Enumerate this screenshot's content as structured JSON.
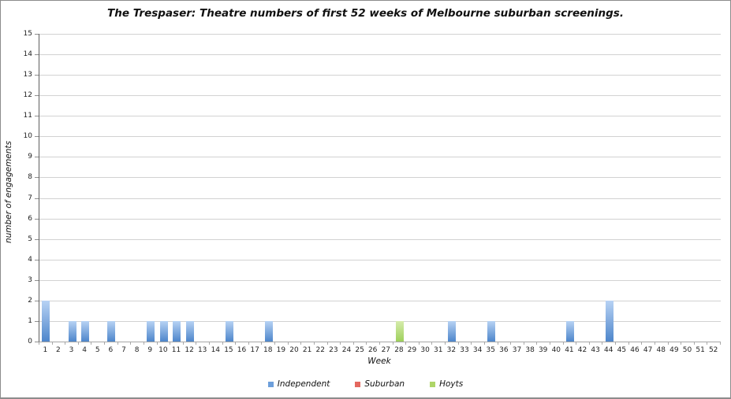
{
  "chart_data": {
    "type": "bar",
    "title": "The Trespaser: Theatre numbers of first 52 weeks of Melbourne suburban screenings.",
    "xlabel": "Week",
    "ylabel": "number of engagements",
    "ylim": [
      0,
      15
    ],
    "ytick_step": 1,
    "grid": true,
    "legend_position": "bottom",
    "categories": [
      1,
      2,
      3,
      4,
      5,
      6,
      7,
      8,
      9,
      10,
      11,
      12,
      13,
      14,
      15,
      16,
      17,
      18,
      19,
      20,
      21,
      22,
      23,
      24,
      25,
      26,
      27,
      28,
      29,
      30,
      31,
      32,
      33,
      34,
      35,
      36,
      37,
      38,
      39,
      40,
      41,
      42,
      43,
      44,
      45,
      46,
      47,
      48,
      49,
      50,
      51,
      52
    ],
    "series": [
      {
        "name": "Independent",
        "legend_color": "#6D9FDB",
        "bar_gradient": [
          "#B7D2F4",
          "#4E86CB"
        ],
        "values": [
          2,
          0,
          1,
          1,
          0,
          1,
          0,
          0,
          1,
          1,
          1,
          1,
          0,
          0,
          1,
          0,
          0,
          1,
          0,
          0,
          0,
          0,
          0,
          0,
          0,
          0,
          0,
          0,
          0,
          0,
          0,
          1,
          0,
          0,
          1,
          0,
          0,
          0,
          0,
          0,
          1,
          0,
          0,
          2,
          0,
          0,
          0,
          0,
          0,
          0,
          0,
          0
        ]
      },
      {
        "name": "Suburban",
        "legend_color": "#E4685F",
        "bar_gradient": [
          "#F4BCB6",
          "#D95F55"
        ],
        "values": [
          0,
          0,
          0,
          0,
          0,
          0,
          0,
          0,
          0,
          0,
          0,
          0,
          0,
          0,
          0,
          0,
          0,
          0,
          0,
          0,
          0,
          0,
          0,
          0,
          0,
          0,
          0,
          0,
          0,
          0,
          0,
          0,
          0,
          0,
          0,
          0,
          0,
          0,
          0,
          0,
          0,
          0,
          0,
          0,
          0,
          0,
          0,
          0,
          0,
          0,
          0,
          0
        ]
      },
      {
        "name": "Hoyts",
        "legend_color": "#AED568",
        "bar_gradient": [
          "#D6ECAC",
          "#9ED05B"
        ],
        "values": [
          0,
          0,
          0,
          0,
          0,
          0,
          0,
          0,
          0,
          0,
          0,
          0,
          0,
          0,
          0,
          0,
          0,
          0,
          0,
          0,
          0,
          0,
          0,
          0,
          0,
          0,
          0,
          1,
          0,
          0,
          0,
          0,
          0,
          0,
          0,
          0,
          0,
          0,
          0,
          0,
          0,
          0,
          0,
          0,
          0,
          0,
          0,
          0,
          0,
          0,
          0,
          0
        ]
      }
    ]
  }
}
